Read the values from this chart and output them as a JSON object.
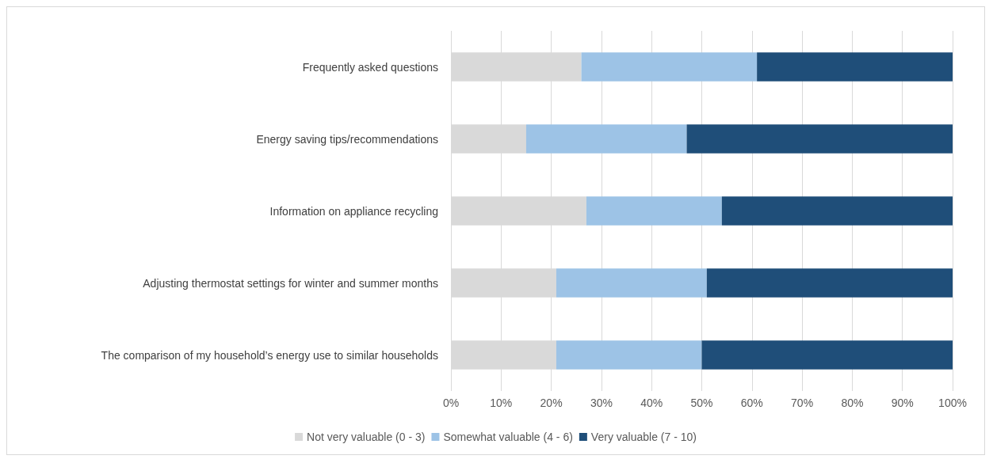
{
  "chart_data": {
    "type": "bar",
    "orientation": "horizontal",
    "stacked": true,
    "categories": [
      "Frequently asked questions",
      "Energy saving tips/recommendations",
      "Information on appliance recycling",
      "Adjusting thermostat settings for winter and summer months",
      "The comparison of my household’s energy use to similar households"
    ],
    "series": [
      {
        "name": "Not very valuable (0 - 3)",
        "color": "#d9d9d9",
        "values": [
          26,
          15,
          27,
          21,
          21
        ]
      },
      {
        "name": "Somewhat valuable (4 - 6)",
        "color": "#9dc3e6",
        "values": [
          35,
          32,
          27,
          30,
          29
        ]
      },
      {
        "name": "Very valuable (7 - 10)",
        "color": "#1f4e79",
        "values": [
          39,
          53,
          46,
          49,
          50
        ]
      }
    ],
    "xlim": [
      0,
      100
    ],
    "xticks": [
      {
        "value": 0,
        "label": "0%"
      },
      {
        "value": 10,
        "label": "10%"
      },
      {
        "value": 20,
        "label": "20%"
      },
      {
        "value": 30,
        "label": "30%"
      },
      {
        "value": 40,
        "label": "40%"
      },
      {
        "value": 50,
        "label": "50%"
      },
      {
        "value": 60,
        "label": "60%"
      },
      {
        "value": 70,
        "label": "70%"
      },
      {
        "value": 80,
        "label": "80%"
      },
      {
        "value": 90,
        "label": "90%"
      },
      {
        "value": 100,
        "label": "100%"
      }
    ],
    "grid": "x",
    "legend": "bottom"
  }
}
